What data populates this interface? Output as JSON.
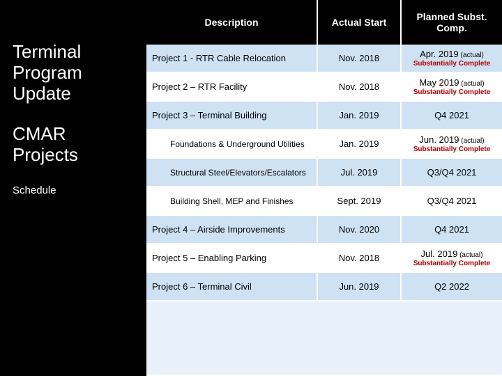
{
  "left": {
    "title1": "Terminal Program Update",
    "title2": "CMAR Projects",
    "title3": "Schedule"
  },
  "headers": {
    "desc": "Description",
    "start": "Actual Start",
    "comp": "Planned Subst. Comp."
  },
  "rows": [
    {
      "bg": "blue",
      "indent": false,
      "desc": "Project 1 - RTR Cable Relocation",
      "start": "Nov. 2018",
      "comp": "Apr. 2019",
      "note": "(actual)",
      "sub": "Substantially Complete"
    },
    {
      "bg": "white",
      "indent": false,
      "desc": "Project 2 – RTR Facility",
      "start": "Nov. 2018",
      "comp": "May 2019",
      "note": "(actual)",
      "sub": "Substantially Complete"
    },
    {
      "bg": "blue",
      "indent": false,
      "desc": "Project 3 – Terminal Building",
      "start": "Jan. 2019",
      "comp": "Q4 2021",
      "note": "",
      "sub": ""
    },
    {
      "bg": "white",
      "indent": true,
      "desc": "Foundations & Underground Utilities",
      "start": "Jan. 2019",
      "comp": "Jun. 2019",
      "note": "(actual)",
      "sub": "Substantially Complete"
    },
    {
      "bg": "blue",
      "indent": true,
      "desc": "Structural Steel/Elevators/Escalators",
      "start": "Jul. 2019",
      "comp": "Q3/Q4 2021",
      "note": "",
      "sub": ""
    },
    {
      "bg": "white",
      "indent": true,
      "desc": "Building Shell, MEP and Finishes",
      "start": "Sept. 2019",
      "comp": "Q3/Q4 2021",
      "note": "",
      "sub": ""
    },
    {
      "bg": "blue",
      "indent": false,
      "desc": "Project 4 – Airside Improvements",
      "start": "Nov. 2020",
      "comp": "Q4 2021",
      "note": "",
      "sub": ""
    },
    {
      "bg": "white",
      "indent": false,
      "desc": "Project 5 – Enabling Parking",
      "start": "Nov. 2018",
      "comp": "Jul. 2019",
      "note": "(actual)",
      "sub": "Substantially Complete"
    },
    {
      "bg": "blue",
      "indent": false,
      "desc": "Project 6 – Terminal Civil",
      "start": "Jun. 2019",
      "comp": "Q2 2022",
      "note": "",
      "sub": ""
    }
  ]
}
